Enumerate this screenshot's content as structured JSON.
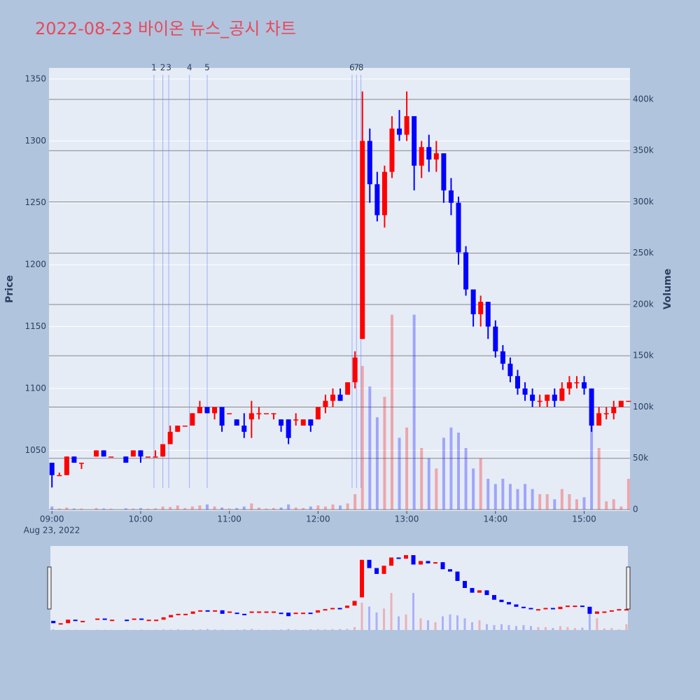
{
  "chart_data": {
    "type": "candlestick",
    "title": "2022-08-23 바이온 뉴스_공시 차트",
    "yaxis_title": "Price",
    "y2axis_title": "Volume",
    "x_date_label": "Aug 23, 2022",
    "increasing_color": "red",
    "decreasing_color": "blue",
    "x": [
      "09:00",
      "09:05",
      "09:10",
      "09:15",
      "09:20",
      "09:30",
      "09:35",
      "09:40",
      "09:50",
      "09:55",
      "10:00",
      "10:05",
      "10:10",
      "10:15",
      "10:20",
      "10:25",
      "10:30",
      "10:35",
      "10:40",
      "10:45",
      "10:50",
      "10:55",
      "11:00",
      "11:05",
      "11:10",
      "11:15",
      "11:20",
      "11:25",
      "11:30",
      "11:35",
      "11:40",
      "11:45",
      "11:50",
      "11:55",
      "12:00",
      "12:05",
      "12:10",
      "12:15",
      "12:20",
      "12:25",
      "12:30",
      "12:35",
      "12:40",
      "12:45",
      "12:50",
      "12:55",
      "13:00",
      "13:05",
      "13:10",
      "13:15",
      "13:20",
      "13:25",
      "13:30",
      "13:35",
      "13:40",
      "13:45",
      "13:50",
      "13:55",
      "14:00",
      "14:05",
      "14:10",
      "14:15",
      "14:20",
      "14:25",
      "14:30",
      "14:35",
      "14:40",
      "14:45",
      "14:50",
      "14:55",
      "15:00",
      "15:05",
      "15:10",
      "15:15",
      "15:20",
      "15:25",
      "15:30"
    ],
    "open": [
      1040,
      1030,
      1030,
      1045,
      1040,
      1045,
      1050,
      1045,
      1045,
      1045,
      1050,
      1045,
      1045,
      1045,
      1055,
      1065,
      1070,
      1070,
      1080,
      1085,
      1080,
      1085,
      1080,
      1075,
      1070,
      1075,
      1080,
      1080,
      1080,
      1075,
      1075,
      1075,
      1070,
      1075,
      1075,
      1085,
      1090,
      1095,
      1095,
      1105,
      1140,
      1300,
      1265,
      1240,
      1275,
      1310,
      1305,
      1320,
      1280,
      1295,
      1285,
      1290,
      1260,
      1250,
      1210,
      1180,
      1160,
      1170,
      1150,
      1130,
      1120,
      1110,
      1100,
      1095,
      1090,
      1090,
      1095,
      1090,
      1100,
      1105,
      1105,
      1100,
      1070,
      1080,
      1080,
      1085,
      1090
    ],
    "high": [
      1040,
      1032,
      1045,
      1045,
      1040,
      1050,
      1050,
      1045,
      1045,
      1050,
      1050,
      1045,
      1050,
      1055,
      1070,
      1070,
      1070,
      1080,
      1090,
      1085,
      1085,
      1085,
      1080,
      1075,
      1080,
      1090,
      1085,
      1080,
      1080,
      1075,
      1075,
      1080,
      1075,
      1075,
      1085,
      1095,
      1100,
      1100,
      1105,
      1130,
      1340,
      1310,
      1275,
      1280,
      1320,
      1325,
      1340,
      1320,
      1300,
      1305,
      1300,
      1290,
      1270,
      1255,
      1215,
      1180,
      1175,
      1170,
      1155,
      1135,
      1125,
      1115,
      1105,
      1100,
      1095,
      1095,
      1100,
      1105,
      1110,
      1110,
      1110,
      1100,
      1085,
      1085,
      1090,
      1090,
      1090
    ],
    "low": [
      1020,
      1030,
      1030,
      1040,
      1035,
      1045,
      1045,
      1045,
      1040,
      1045,
      1040,
      1045,
      1045,
      1045,
      1055,
      1065,
      1070,
      1070,
      1080,
      1080,
      1075,
      1065,
      1080,
      1070,
      1060,
      1060,
      1075,
      1080,
      1075,
      1065,
      1055,
      1070,
      1070,
      1065,
      1075,
      1080,
      1085,
      1090,
      1095,
      1100,
      1140,
      1250,
      1235,
      1230,
      1270,
      1300,
      1300,
      1260,
      1270,
      1275,
      1275,
      1250,
      1240,
      1200,
      1175,
      1150,
      1150,
      1140,
      1125,
      1115,
      1105,
      1095,
      1090,
      1085,
      1085,
      1085,
      1085,
      1090,
      1095,
      1100,
      1095,
      1065,
      1070,
      1075,
      1075,
      1085,
      1090
    ],
    "close": [
      1030,
      1030,
      1045,
      1040,
      1040,
      1050,
      1045,
      1045,
      1040,
      1050,
      1045,
      1045,
      1045,
      1055,
      1065,
      1070,
      1070,
      1080,
      1085,
      1080,
      1085,
      1070,
      1080,
      1070,
      1065,
      1080,
      1080,
      1080,
      1080,
      1070,
      1060,
      1075,
      1075,
      1070,
      1085,
      1090,
      1095,
      1090,
      1105,
      1125,
      1300,
      1265,
      1240,
      1275,
      1310,
      1305,
      1320,
      1280,
      1295,
      1285,
      1290,
      1260,
      1250,
      1210,
      1180,
      1160,
      1170,
      1150,
      1130,
      1120,
      1110,
      1100,
      1095,
      1090,
      1090,
      1095,
      1090,
      1100,
      1105,
      1105,
      1100,
      1070,
      1080,
      1080,
      1085,
      1090,
      1090
    ],
    "volume": [
      3000,
      1000,
      2000,
      1000,
      1000,
      1500,
      1000,
      800,
      1200,
      1000,
      1500,
      800,
      1200,
      3000,
      2500,
      4000,
      1500,
      3000,
      4000,
      5000,
      3000,
      2000,
      1000,
      1500,
      3000,
      6000,
      2000,
      1000,
      1500,
      2000,
      5000,
      2000,
      1500,
      3000,
      4000,
      3000,
      5000,
      4000,
      6000,
      15000,
      140000,
      120000,
      90000,
      110000,
      190000,
      70000,
      80000,
      190000,
      60000,
      50000,
      40000,
      70000,
      80000,
      75000,
      60000,
      40000,
      50000,
      30000,
      25000,
      30000,
      25000,
      20000,
      25000,
      20000,
      15000,
      15000,
      10000,
      20000,
      15000,
      10000,
      12000,
      100000,
      60000,
      8000,
      10000,
      3000,
      30000
    ],
    "xlim": [
      "08:58",
      "15:31"
    ],
    "xticks": [
      "09:00",
      "10:00",
      "11:00",
      "12:00",
      "13:00",
      "14:00",
      "15:00"
    ],
    "ylim": [
      1001,
      1359
    ],
    "yticks": [
      1050,
      1100,
      1150,
      1200,
      1250,
      1300,
      1350
    ],
    "y2lim": [
      -1400,
      430700
    ],
    "y2ticks": [
      0,
      {
        "value": 50000,
        "label": "50k"
      },
      {
        "value": 100000,
        "label": "100k"
      },
      {
        "value": 150000,
        "label": "150k"
      },
      {
        "value": 200000,
        "label": "200k"
      },
      {
        "value": 250000,
        "label": "250k"
      },
      {
        "value": 300000,
        "label": "300k"
      },
      {
        "value": 350000,
        "label": "350k"
      },
      {
        "value": 400000,
        "label": "400k"
      }
    ],
    "news": {
      "x": [
        "10:09",
        "10:15",
        "10:19",
        "10:33",
        "10:45",
        "12:23",
        "12:26",
        "12:29"
      ],
      "labels": [
        "1",
        "2",
        "3",
        "4",
        "5",
        "6",
        "7",
        "8"
      ]
    }
  }
}
